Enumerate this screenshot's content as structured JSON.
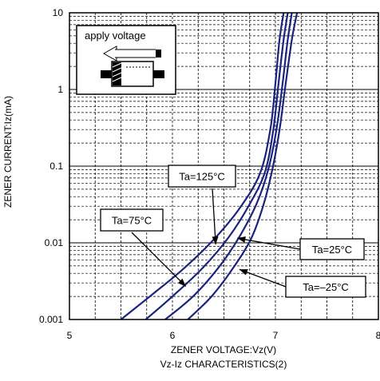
{
  "chart_data": {
    "type": "line",
    "title": "Vz-Iz CHARACTERISTICS(2)",
    "xlabel": "ZENER VOLTAGE:Vz(V)",
    "ylabel": "ZENER CURRENT:Iz(mA)",
    "xlim": [
      5,
      8
    ],
    "ylim": [
      0.001,
      10
    ],
    "yscale": "log",
    "grid": true,
    "x_ticks": [
      "5",
      "6",
      "7",
      "8"
    ],
    "y_ticks": [
      "0.001",
      "0.01",
      "0.1",
      "1",
      "10"
    ],
    "line_color": "#1a237e",
    "series": [
      {
        "name": "Ta=125°C",
        "x": [
          5.5,
          5.8,
          6.1,
          6.4,
          6.65,
          6.85,
          6.95,
          7.0,
          7.04,
          7.08
        ],
        "y": [
          0.001,
          0.0021,
          0.0045,
          0.011,
          0.028,
          0.08,
          0.3,
          1.2,
          4.5,
          10
        ]
      },
      {
        "name": "Ta=75°C",
        "x": [
          5.74,
          6.0,
          6.3,
          6.55,
          6.75,
          6.9,
          6.98,
          7.03,
          7.08,
          7.12
        ],
        "y": [
          0.001,
          0.002,
          0.0048,
          0.012,
          0.032,
          0.085,
          0.3,
          1.2,
          4.5,
          10
        ]
      },
      {
        "name": "Ta=25°C",
        "x": [
          5.93,
          6.2,
          6.45,
          6.65,
          6.82,
          6.93,
          7.01,
          7.07,
          7.12,
          7.16
        ],
        "y": [
          0.001,
          0.002,
          0.0048,
          0.012,
          0.033,
          0.09,
          0.3,
          1.2,
          4.5,
          10
        ]
      },
      {
        "name": "Ta=–25°C",
        "x": [
          6.15,
          6.38,
          6.58,
          6.76,
          6.88,
          6.97,
          7.04,
          7.1,
          7.16,
          7.21
        ],
        "y": [
          0.001,
          0.002,
          0.0045,
          0.011,
          0.03,
          0.09,
          0.3,
          1.2,
          4.5,
          10
        ]
      }
    ],
    "annotations": [
      {
        "text": "Ta=125°C",
        "series": 0,
        "point": [
          6.42,
          0.0095
        ]
      },
      {
        "text": "Ta=75°C",
        "series": 1,
        "point": [
          6.13,
          0.0027
        ]
      },
      {
        "text": "Ta=25°C",
        "series": 2,
        "point": [
          6.63,
          0.0115
        ]
      },
      {
        "text": "Ta=–25°C",
        "series": 3,
        "point": [
          6.65,
          0.0045
        ]
      }
    ],
    "inset_label": "apply voltage"
  }
}
